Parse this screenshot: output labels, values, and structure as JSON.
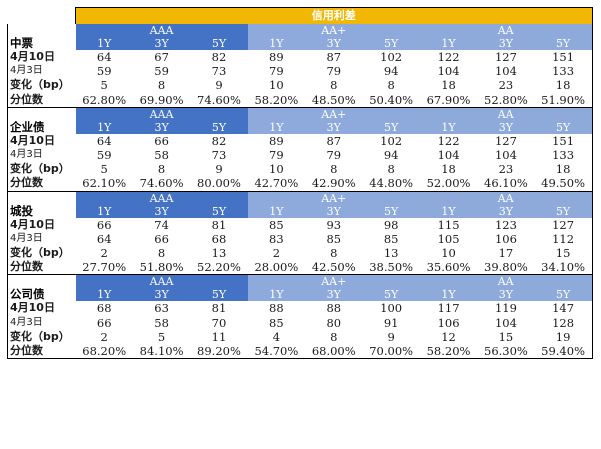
{
  "title": "信用利差",
  "tenors": [
    "1Y",
    "3Y",
    "5Y"
  ],
  "groups": [
    "AAA",
    "AA+",
    "AA"
  ],
  "row_labels": {
    "current": "4月10日",
    "previous": "4月3日",
    "change": "变化（bp）",
    "percentile": "分位数"
  },
  "sections": [
    {
      "name": "中票",
      "current": [
        "64",
        "67",
        "82",
        "89",
        "87",
        "102",
        "122",
        "127",
        "151"
      ],
      "previous": [
        "59",
        "59",
        "73",
        "79",
        "79",
        "94",
        "104",
        "104",
        "133"
      ],
      "change": [
        "5",
        "8",
        "9",
        "10",
        "8",
        "8",
        "18",
        "23",
        "18"
      ],
      "percentile": [
        "62.80%",
        "69.90%",
        "74.60%",
        "58.20%",
        "48.50%",
        "50.40%",
        "67.90%",
        "52.80%",
        "51.90%"
      ]
    },
    {
      "name": "企业债",
      "current": [
        "64",
        "66",
        "82",
        "89",
        "87",
        "102",
        "122",
        "127",
        "151"
      ],
      "previous": [
        "59",
        "58",
        "73",
        "79",
        "79",
        "94",
        "104",
        "104",
        "133"
      ],
      "change": [
        "5",
        "8",
        "9",
        "10",
        "8",
        "8",
        "18",
        "23",
        "18"
      ],
      "percentile": [
        "62.10%",
        "74.60%",
        "80.00%",
        "42.70%",
        "42.90%",
        "44.80%",
        "52.00%",
        "46.10%",
        "49.50%"
      ]
    },
    {
      "name": "城投",
      "current": [
        "66",
        "74",
        "81",
        "85",
        "93",
        "98",
        "115",
        "123",
        "127"
      ],
      "previous": [
        "64",
        "66",
        "68",
        "83",
        "85",
        "85",
        "105",
        "106",
        "112"
      ],
      "change": [
        "2",
        "8",
        "13",
        "2",
        "8",
        "13",
        "10",
        "17",
        "15"
      ],
      "percentile": [
        "27.70%",
        "51.80%",
        "52.20%",
        "28.00%",
        "42.50%",
        "38.50%",
        "35.60%",
        "39.80%",
        "34.10%"
      ]
    },
    {
      "name": "公司债",
      "current": [
        "68",
        "63",
        "81",
        "88",
        "88",
        "100",
        "117",
        "119",
        "147"
      ],
      "previous": [
        "66",
        "58",
        "70",
        "85",
        "80",
        "91",
        "106",
        "104",
        "128"
      ],
      "change": [
        "2",
        "5",
        "11",
        "4",
        "8",
        "9",
        "12",
        "15",
        "19"
      ],
      "percentile": [
        "68.20%",
        "84.10%",
        "89.20%",
        "54.70%",
        "68.00%",
        "70.00%",
        "58.20%",
        "56.30%",
        "59.40%"
      ]
    }
  ],
  "colors": {
    "title_bg": "#f2b705",
    "aaa_bg": "#4472c4",
    "aa_plus_bg": "#8ea9db",
    "aa_bg": "#8eaadb"
  }
}
